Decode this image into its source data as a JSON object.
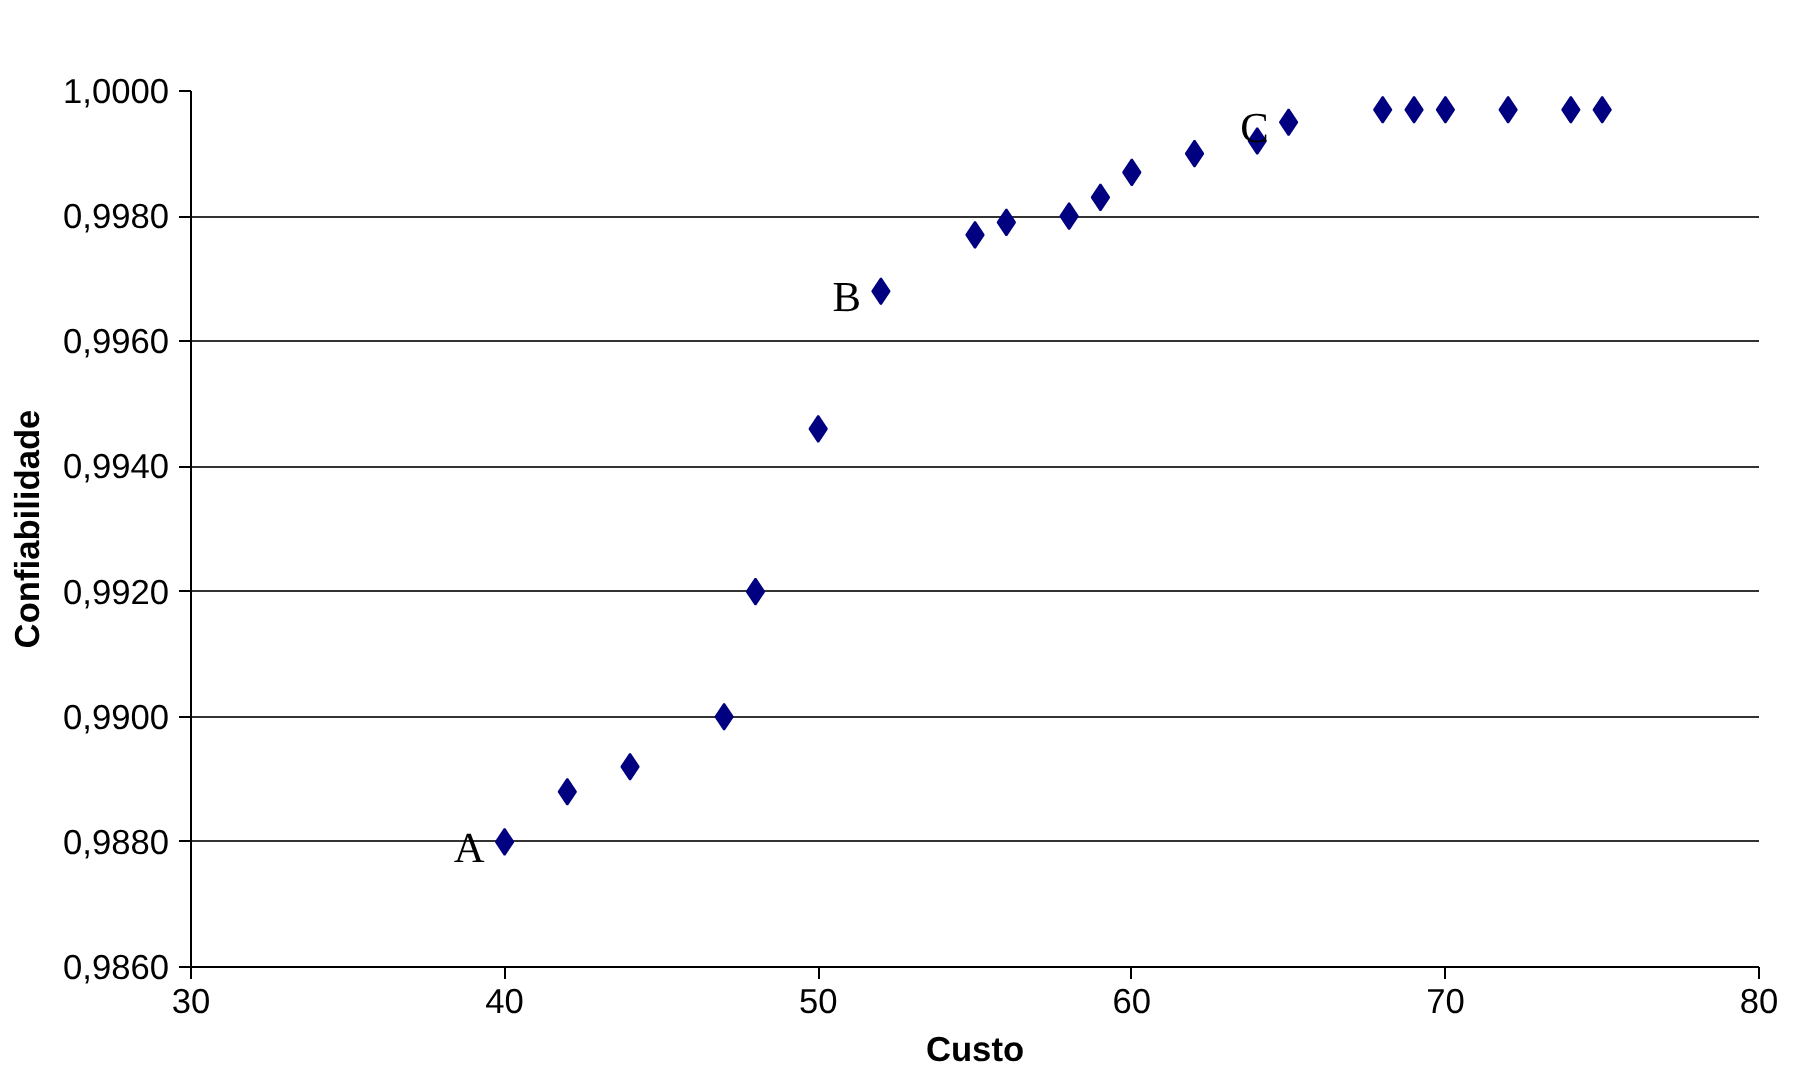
{
  "chart_data": {
    "type": "scatter",
    "xlabel": "Custo",
    "ylabel": "Confiabilidade",
    "x": [
      40,
      42,
      44,
      47,
      48,
      50,
      52,
      55,
      56,
      58,
      59,
      60,
      62,
      64,
      65,
      68,
      69,
      70,
      72,
      74,
      75
    ],
    "series": [
      {
        "color": "#000080",
        "values": [
          0.988,
          0.9888,
          0.9892,
          0.99,
          0.992,
          0.9946,
          0.9968,
          0.9977,
          0.9979,
          0.998,
          0.9983,
          0.9987,
          0.999,
          0.9992,
          0.9995,
          0.9997,
          0.9997,
          0.9997,
          0.9997,
          0.9997,
          0.9997
        ]
      }
    ],
    "xlim": [
      30,
      80
    ],
    "xticks": [
      30,
      40,
      50,
      60,
      70,
      80
    ],
    "ylim": [
      0.986,
      1.0
    ],
    "yticks": [
      {
        "value": 0.986,
        "label": "0,9860"
      },
      {
        "value": 0.988,
        "label": "0,9880"
      },
      {
        "value": 0.99,
        "label": "0,9900"
      },
      {
        "value": 0.992,
        "label": "0,9920"
      },
      {
        "value": 0.994,
        "label": "0,9940"
      },
      {
        "value": 0.996,
        "label": "0,9960"
      },
      {
        "value": 0.998,
        "label": "0,9980"
      },
      {
        "value": 1.0,
        "label": "1,0000"
      }
    ],
    "annotations": [
      {
        "text": "A",
        "x": 40,
        "y": 0.988
      },
      {
        "text": "B",
        "x": 52,
        "y": 0.9968
      },
      {
        "text": "C",
        "x": 65,
        "y": 0.9995
      }
    ],
    "grid": "y",
    "marker": "diamond"
  }
}
